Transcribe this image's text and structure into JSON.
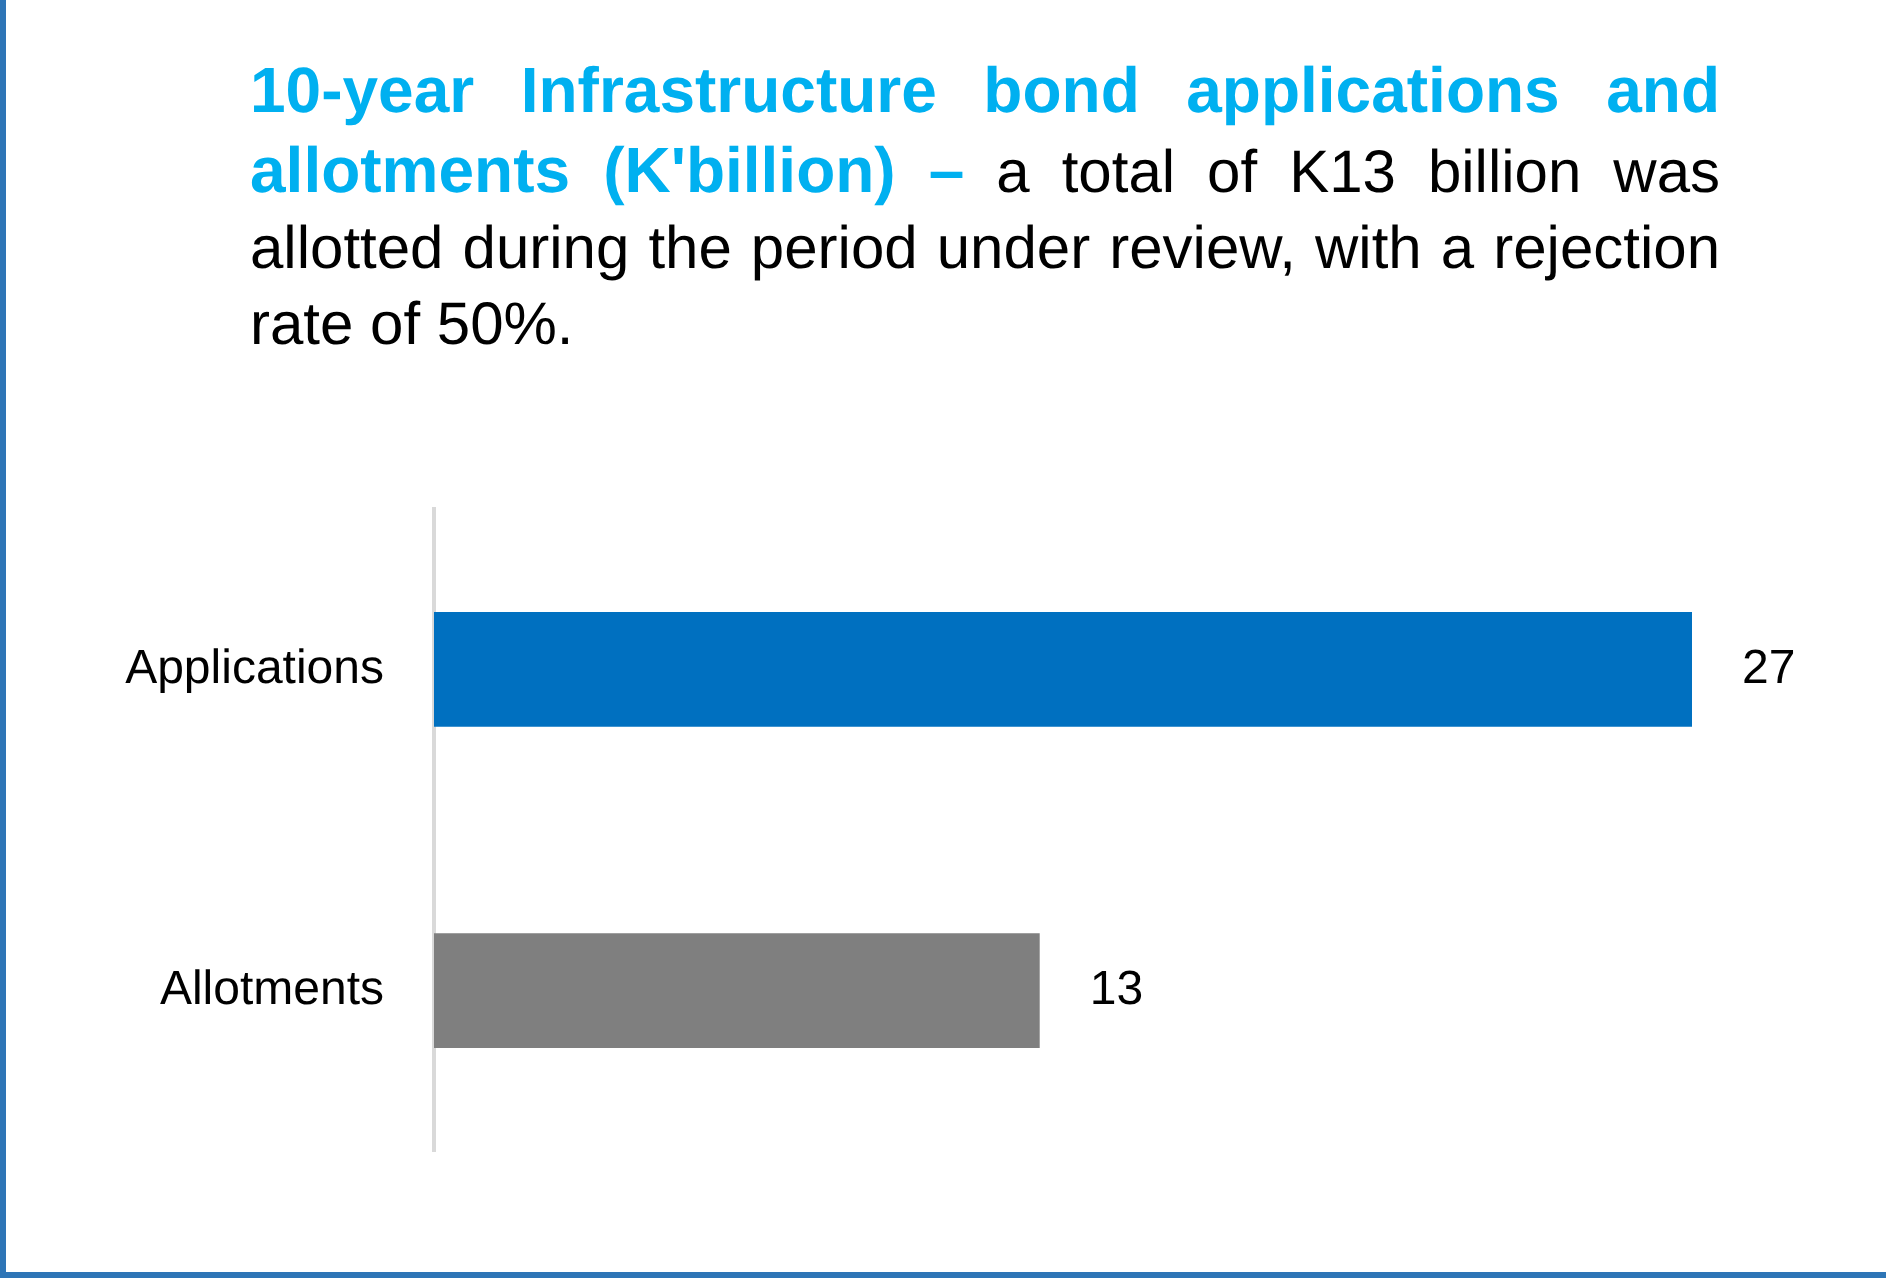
{
  "chart_data": {
    "type": "bar",
    "orientation": "horizontal",
    "title": "10-year Infrastructure bond applications and allotments (K'billion) –",
    "subtitle": "a total of K13 billion was allotted during the period under review, with a rejection rate of 50%.",
    "categories": [
      "Applications",
      "Allotments"
    ],
    "values": [
      27,
      13
    ],
    "colors": [
      "#0070c0",
      "#7f7f7f"
    ],
    "data_labels": true
  }
}
